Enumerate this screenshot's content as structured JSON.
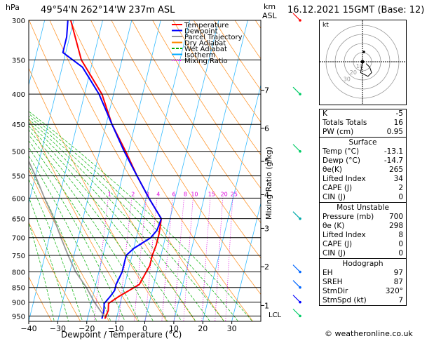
{
  "header": {
    "hpa_unit": "hPa",
    "location": "49°54'N  262°14'W  237m  ASL",
    "km_unit": "km",
    "asl_unit": "ASL",
    "datetime": "16.12.2021  15GMT  (Base: 12)"
  },
  "chart_data": {
    "type": "line",
    "title": "",
    "xlabel": "Dewpoint / Temperature (°C)",
    "ylabel": "hPa",
    "right_axis_label": "Mixing Ratio (g/kg)",
    "x_ticks": [
      "−40",
      "−30",
      "−20",
      "−10",
      "0",
      "10",
      "20",
      "30"
    ],
    "x_tick_values": [
      -40,
      -30,
      -20,
      -10,
      0,
      10,
      20,
      30
    ],
    "pressure_levels": [
      300,
      350,
      400,
      450,
      500,
      550,
      600,
      650,
      700,
      750,
      800,
      850,
      900,
      950
    ],
    "pressure_tick_labels": [
      "300",
      "350",
      "400",
      "450",
      "500",
      "550",
      "600",
      "650",
      "700",
      "750",
      "800",
      "850",
      "900",
      "950"
    ],
    "km_ticks": [
      {
        "km": "1",
        "p": 912
      },
      {
        "km": "2",
        "p": 784
      },
      {
        "km": "3",
        "p": 675
      },
      {
        "km": "4",
        "p": 592
      },
      {
        "km": "5",
        "p": 520
      },
      {
        "km": "6",
        "p": 457
      },
      {
        "km": "7",
        "p": 394
      }
    ],
    "lcl_label": "LCL",
    "lcl_p": 950,
    "mixing_ratio_labels": [
      "1",
      "2",
      "3",
      "4",
      "6",
      "8",
      "10",
      "15",
      "20",
      "25"
    ],
    "mixing_ratio_values": [
      1,
      2,
      3,
      4,
      6,
      8,
      10,
      15,
      20,
      25
    ],
    "legend": [
      {
        "name": "Temperature",
        "color": "#ff0000"
      },
      {
        "name": "Dewpoint",
        "color": "#0000ff"
      },
      {
        "name": "Parcel Trajectory",
        "color": "#999999"
      },
      {
        "name": "Dry Adiabat",
        "color": "#ff8800"
      },
      {
        "name": "Wet Adiabat",
        "color": "#00aa00"
      },
      {
        "name": "Isotherm",
        "color": "#00aaff"
      },
      {
        "name": "Mixing Ratio",
        "color": "#ff00ff"
      }
    ],
    "series": [
      {
        "name": "Temperature",
        "color": "#ff0000",
        "points": [
          [
            960,
            -14
          ],
          [
            930,
            -13.5
          ],
          [
            905,
            -14
          ],
          [
            880,
            -11
          ],
          [
            860,
            -8
          ],
          [
            840,
            -5
          ],
          [
            810,
            -4
          ],
          [
            780,
            -3
          ],
          [
            750,
            -3
          ],
          [
            720,
            -2.5
          ],
          [
            690,
            -2.5
          ],
          [
            650,
            -3
          ],
          [
            600,
            -9
          ],
          [
            550,
            -15
          ],
          [
            500,
            -21
          ],
          [
            450,
            -28
          ],
          [
            400,
            -34
          ],
          [
            350,
            -44
          ],
          [
            300,
            -51
          ]
        ]
      },
      {
        "name": "Dewpoint",
        "color": "#0000ff",
        "points": [
          [
            960,
            -15
          ],
          [
            930,
            -15
          ],
          [
            905,
            -15.5
          ],
          [
            880,
            -14
          ],
          [
            860,
            -13
          ],
          [
            840,
            -13
          ],
          [
            800,
            -12
          ],
          [
            750,
            -12
          ],
          [
            730,
            -10
          ],
          [
            700,
            -5
          ],
          [
            680,
            -3.5
          ],
          [
            650,
            -3
          ],
          [
            600,
            -9
          ],
          [
            550,
            -15
          ],
          [
            500,
            -21.5
          ],
          [
            450,
            -28
          ],
          [
            400,
            -35
          ],
          [
            360,
            -43
          ],
          [
            340,
            -51
          ],
          [
            320,
            -51
          ],
          [
            300,
            -52
          ]
        ]
      },
      {
        "name": "Parcel Trajectory",
        "color": "#999999",
        "points": [
          [
            950,
            -14.5
          ],
          [
            900,
            -19
          ],
          [
            850,
            -23
          ],
          [
            800,
            -28
          ],
          [
            750,
            -32
          ],
          [
            700,
            -36
          ],
          [
            650,
            -40
          ],
          [
            600,
            -45
          ],
          [
            550,
            -50
          ],
          [
            500,
            -56
          ],
          [
            450,
            -62
          ],
          [
            400,
            -70
          ]
        ]
      }
    ],
    "xlim": [
      -40,
      40
    ],
    "plim": [
      300,
      970
    ],
    "skew_c_per_decade": 50,
    "grid": true
  },
  "hodograph": {
    "label": "kt",
    "rings_kt": [
      10,
      20,
      30,
      40
    ],
    "ring_labels": [
      "10",
      "20",
      "30"
    ],
    "trace": [
      [
        0,
        0
      ],
      [
        -1,
        -6
      ],
      [
        3,
        -8
      ],
      [
        5,
        -6
      ],
      [
        4,
        -3
      ],
      [
        2,
        -1
      ]
    ],
    "storm_motion": [
      0,
      0
    ]
  },
  "winds": [
    {
      "p": 300,
      "color": "#ff0000"
    },
    {
      "p": 400,
      "color": "#00cc66"
    },
    {
      "p": 500,
      "color": "#00cc66"
    },
    {
      "p": 650,
      "color": "#00aaaa"
    },
    {
      "p": 800,
      "color": "#0066ff"
    },
    {
      "p": 850,
      "color": "#0066ff"
    },
    {
      "p": 900,
      "color": "#0000ff"
    },
    {
      "p": 950,
      "color": "#00cc66"
    }
  ],
  "indices": [
    {
      "label": "K",
      "value": "-5"
    },
    {
      "label": "Totals Totals",
      "value": "16"
    },
    {
      "label": "PW (cm)",
      "value": "0.95"
    }
  ],
  "surface": {
    "title": "Surface",
    "rows": [
      {
        "label": "Temp (°C)",
        "value": "-13.1"
      },
      {
        "label": "Dewp (°C)",
        "value": "-14.7"
      },
      {
        "label": "θe(K)",
        "value": "265"
      },
      {
        "label": "Lifted Index",
        "value": "34"
      },
      {
        "label": "CAPE (J)",
        "value": "2"
      },
      {
        "label": "CIN (J)",
        "value": "0"
      }
    ]
  },
  "most_unstable": {
    "title": "Most Unstable",
    "rows": [
      {
        "label": "Pressure (mb)",
        "value": "700"
      },
      {
        "label": "θe (K)",
        "value": "298"
      },
      {
        "label": "Lifted Index",
        "value": "8"
      },
      {
        "label": "CAPE (J)",
        "value": "0"
      },
      {
        "label": "CIN (J)",
        "value": "0"
      }
    ]
  },
  "hodograph_table": {
    "title": "Hodograph",
    "rows": [
      {
        "label": "EH",
        "value": "97"
      },
      {
        "label": "SREH",
        "value": "87"
      },
      {
        "label": "StmDir",
        "value": "320°"
      },
      {
        "label": "StmSpd (kt)",
        "value": "7"
      }
    ]
  },
  "footer": {
    "copyright": "© weatheronline.co.uk"
  }
}
